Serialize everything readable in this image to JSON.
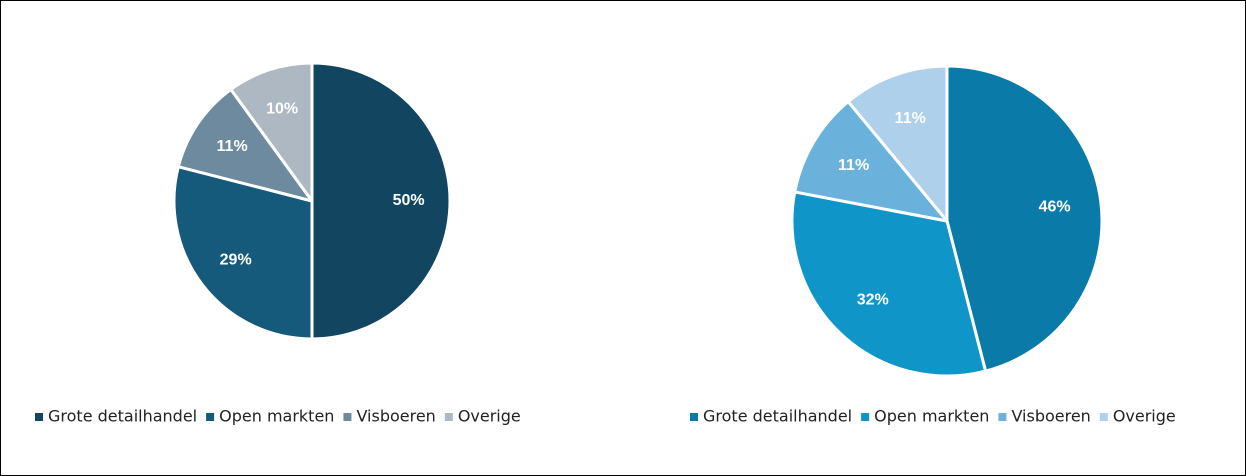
{
  "chart_data": [
    {
      "type": "pie",
      "categories": [
        "Grote detailhandel",
        "Open markten",
        "Visboeren",
        "Overige"
      ],
      "values": [
        50,
        29,
        11,
        10
      ],
      "value_labels": [
        "50%",
        "29%",
        "11%",
        "10%"
      ],
      "colors": [
        "#12455f",
        "#155a7a",
        "#6d8a9e",
        "#adb8c2"
      ],
      "legend": "bottom"
    },
    {
      "type": "pie",
      "categories": [
        "Grote detailhandel",
        "Open markten",
        "Visboeren",
        "Overige"
      ],
      "values": [
        46,
        32,
        11,
        11
      ],
      "value_labels": [
        "46%",
        "32%",
        "11%",
        "11%"
      ],
      "colors": [
        "#0a7ba8",
        "#0f95c8",
        "#6ab1dc",
        "#afd0ea"
      ],
      "legend": "bottom"
    }
  ]
}
